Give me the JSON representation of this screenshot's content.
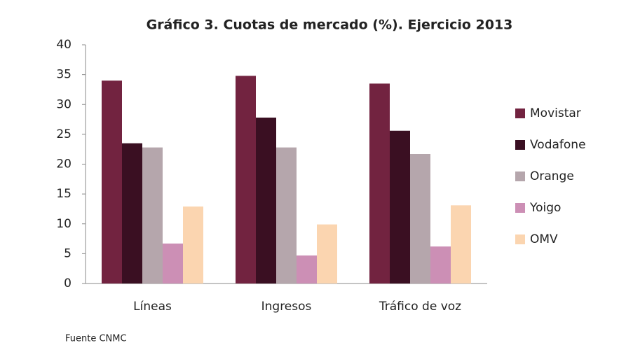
{
  "chart_data": {
    "type": "bar",
    "title": "Gráfico 3. Cuotas de mercado (%). Ejercicio 2013",
    "categories": [
      "Líneas",
      "Ingresos",
      "Tráfico de voz"
    ],
    "series": [
      {
        "name": "Movistar",
        "color": "#722340",
        "values": [
          34.0,
          34.8,
          33.5
        ]
      },
      {
        "name": "Vodafone",
        "color": "#3a0f22",
        "values": [
          23.5,
          27.8,
          25.6
        ]
      },
      {
        "name": "Orange",
        "color": "#b5a6ac",
        "values": [
          22.8,
          22.8,
          21.7
        ]
      },
      {
        "name": "Yoigo",
        "color": "#cc8fb5",
        "values": [
          6.7,
          4.7,
          6.2
        ]
      },
      {
        "name": "OMV",
        "color": "#fbd5b0",
        "values": [
          12.9,
          9.9,
          13.1
        ]
      }
    ],
    "ylim": [
      0,
      40
    ],
    "yticks": [
      0,
      5,
      10,
      15,
      20,
      25,
      30,
      35,
      40
    ],
    "legend": "right",
    "source": "Fuente CNMC"
  }
}
